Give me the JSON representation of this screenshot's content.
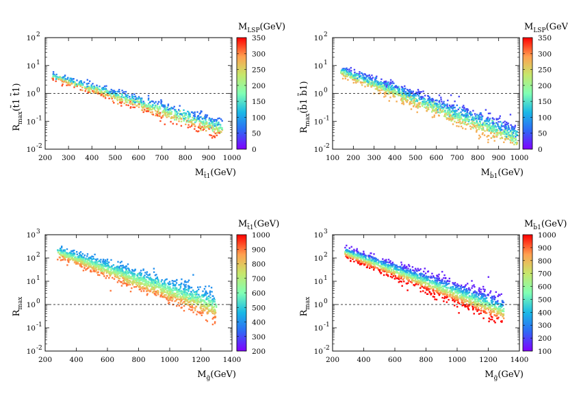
{
  "chart_data": [
    {
      "type": "scatter",
      "xlabel": {
        "main": "M",
        "sub": "t̃1",
        "unit": "(GeV)"
      },
      "ylabel": {
        "main": "R",
        "sub": "max",
        "arg": "(t̃1 t̃1)"
      },
      "xlim": [
        200,
        1000
      ],
      "ylim": [
        0.01,
        100
      ],
      "yscale": "log",
      "xticks": [
        200,
        300,
        400,
        500,
        600,
        700,
        800,
        900,
        1000
      ],
      "xtick_labels": [
        "200",
        "300",
        "400",
        "500",
        "600",
        "700",
        "800",
        "900",
        "1000"
      ],
      "ytick_labels": [
        "10",
        "10",
        "10",
        "10",
        "10"
      ],
      "ytick_exponents": [
        "-2",
        "-1",
        "0",
        "1",
        "2"
      ],
      "reference_line": 1,
      "colorbar": {
        "title": {
          "main": "M",
          "sub": "LSP",
          "unit": "(GeV)"
        },
        "range": [
          0,
          350
        ],
        "ticks": [
          "0",
          "50",
          "100",
          "150",
          "200",
          "250",
          "300",
          "350"
        ]
      },
      "trend": {
        "x_range": [
          230,
          960
        ],
        "log10_y_at_x_min": 0.62,
        "log10_y_at_x_max": -1.28,
        "log10_scatter": 0.18,
        "color_value_range": [
          60,
          320
        ],
        "n_points": 900
      }
    },
    {
      "type": "scatter",
      "xlabel": {
        "main": "M",
        "sub": "b̃1",
        "unit": "(GeV)"
      },
      "ylabel": {
        "main": "R",
        "sub": "max",
        "arg": "(b̃1 b̃1)"
      },
      "xlim": [
        100,
        1000
      ],
      "ylim": [
        0.01,
        100
      ],
      "yscale": "log",
      "xticks": [
        100,
        200,
        300,
        400,
        500,
        600,
        700,
        800,
        900,
        1000
      ],
      "xtick_labels": [
        "100",
        "200",
        "300",
        "400",
        "500",
        "600",
        "700",
        "800",
        "900",
        "1000"
      ],
      "ytick_labels": [
        "10",
        "10",
        "10",
        "10",
        "10"
      ],
      "ytick_exponents": [
        "-2",
        "-1",
        "0",
        "1",
        "2"
      ],
      "reference_line": 1,
      "colorbar": {
        "title": {
          "main": "M",
          "sub": "LSP",
          "unit": "(GeV)"
        },
        "range": [
          0,
          350
        ],
        "ticks": [
          "0",
          "50",
          "100",
          "150",
          "200",
          "250",
          "300",
          "350"
        ]
      },
      "trend": {
        "x_range": [
          140,
          990
        ],
        "log10_y_at_x_min": 0.8,
        "log10_y_at_x_max": -1.55,
        "log10_scatter": 0.22,
        "color_value_range": [
          40,
          280
        ],
        "n_points": 1400
      }
    },
    {
      "type": "scatter",
      "xlabel": {
        "main": "M",
        "sub": "g̃",
        "unit": "(GeV)"
      },
      "ylabel": {
        "main": "R",
        "sub": "max",
        "arg": ""
      },
      "xlim": [
        200,
        1400
      ],
      "ylim": [
        0.01,
        1000
      ],
      "yscale": "log",
      "xticks": [
        200,
        400,
        600,
        800,
        1000,
        1200,
        1400
      ],
      "xtick_labels": [
        "200",
        "400",
        "600",
        "800",
        "1000",
        "1200",
        "1400"
      ],
      "ytick_labels": [
        "10",
        "10",
        "10",
        "10",
        "10",
        "10"
      ],
      "ytick_exponents": [
        "-2",
        "-1",
        "0",
        "1",
        "2",
        "3"
      ],
      "reference_line": 1,
      "colorbar": {
        "title": {
          "main": "M",
          "sub": "t̃1",
          "unit": "(GeV)"
        },
        "range": [
          200,
          1000
        ],
        "ticks": [
          "200",
          "300",
          "400",
          "500",
          "600",
          "700",
          "800",
          "900",
          "1000"
        ]
      },
      "trend": {
        "x_range": [
          280,
          1300
        ],
        "log10_y_at_x_min": 2.25,
        "log10_y_at_x_max": -0.1,
        "log10_scatter": 0.3,
        "color_value_range": [
          400,
          900
        ],
        "n_points": 1600
      }
    },
    {
      "type": "scatter",
      "xlabel": {
        "main": "M",
        "sub": "g̃",
        "unit": "(GeV)"
      },
      "ylabel": {
        "main": "R",
        "sub": "max",
        "arg": ""
      },
      "xlim": [
        200,
        1400
      ],
      "ylim": [
        0.01,
        1000
      ],
      "yscale": "log",
      "xticks": [
        200,
        400,
        600,
        800,
        1000,
        1200,
        1400
      ],
      "xtick_labels": [
        "200",
        "400",
        "600",
        "800",
        "1000",
        "1200",
        "1400"
      ],
      "ytick_labels": [
        "10",
        "10",
        "10",
        "10",
        "10",
        "10"
      ],
      "ytick_exponents": [
        "-2",
        "-1",
        "0",
        "1",
        "2",
        "3"
      ],
      "reference_line": 1,
      "colorbar": {
        "title": {
          "main": "M",
          "sub": "b̃1",
          "unit": "(GeV)"
        },
        "range": [
          100,
          1000
        ],
        "ticks": [
          "100",
          "200",
          "300",
          "400",
          "500",
          "600",
          "700",
          "800",
          "900",
          "1000"
        ]
      },
      "trend": {
        "x_range": [
          280,
          1300
        ],
        "log10_y_at_x_min": 2.25,
        "log10_y_at_x_max": -0.25,
        "log10_scatter": 0.3,
        "color_value_range": [
          150,
          1000
        ],
        "n_points": 1600
      }
    }
  ]
}
